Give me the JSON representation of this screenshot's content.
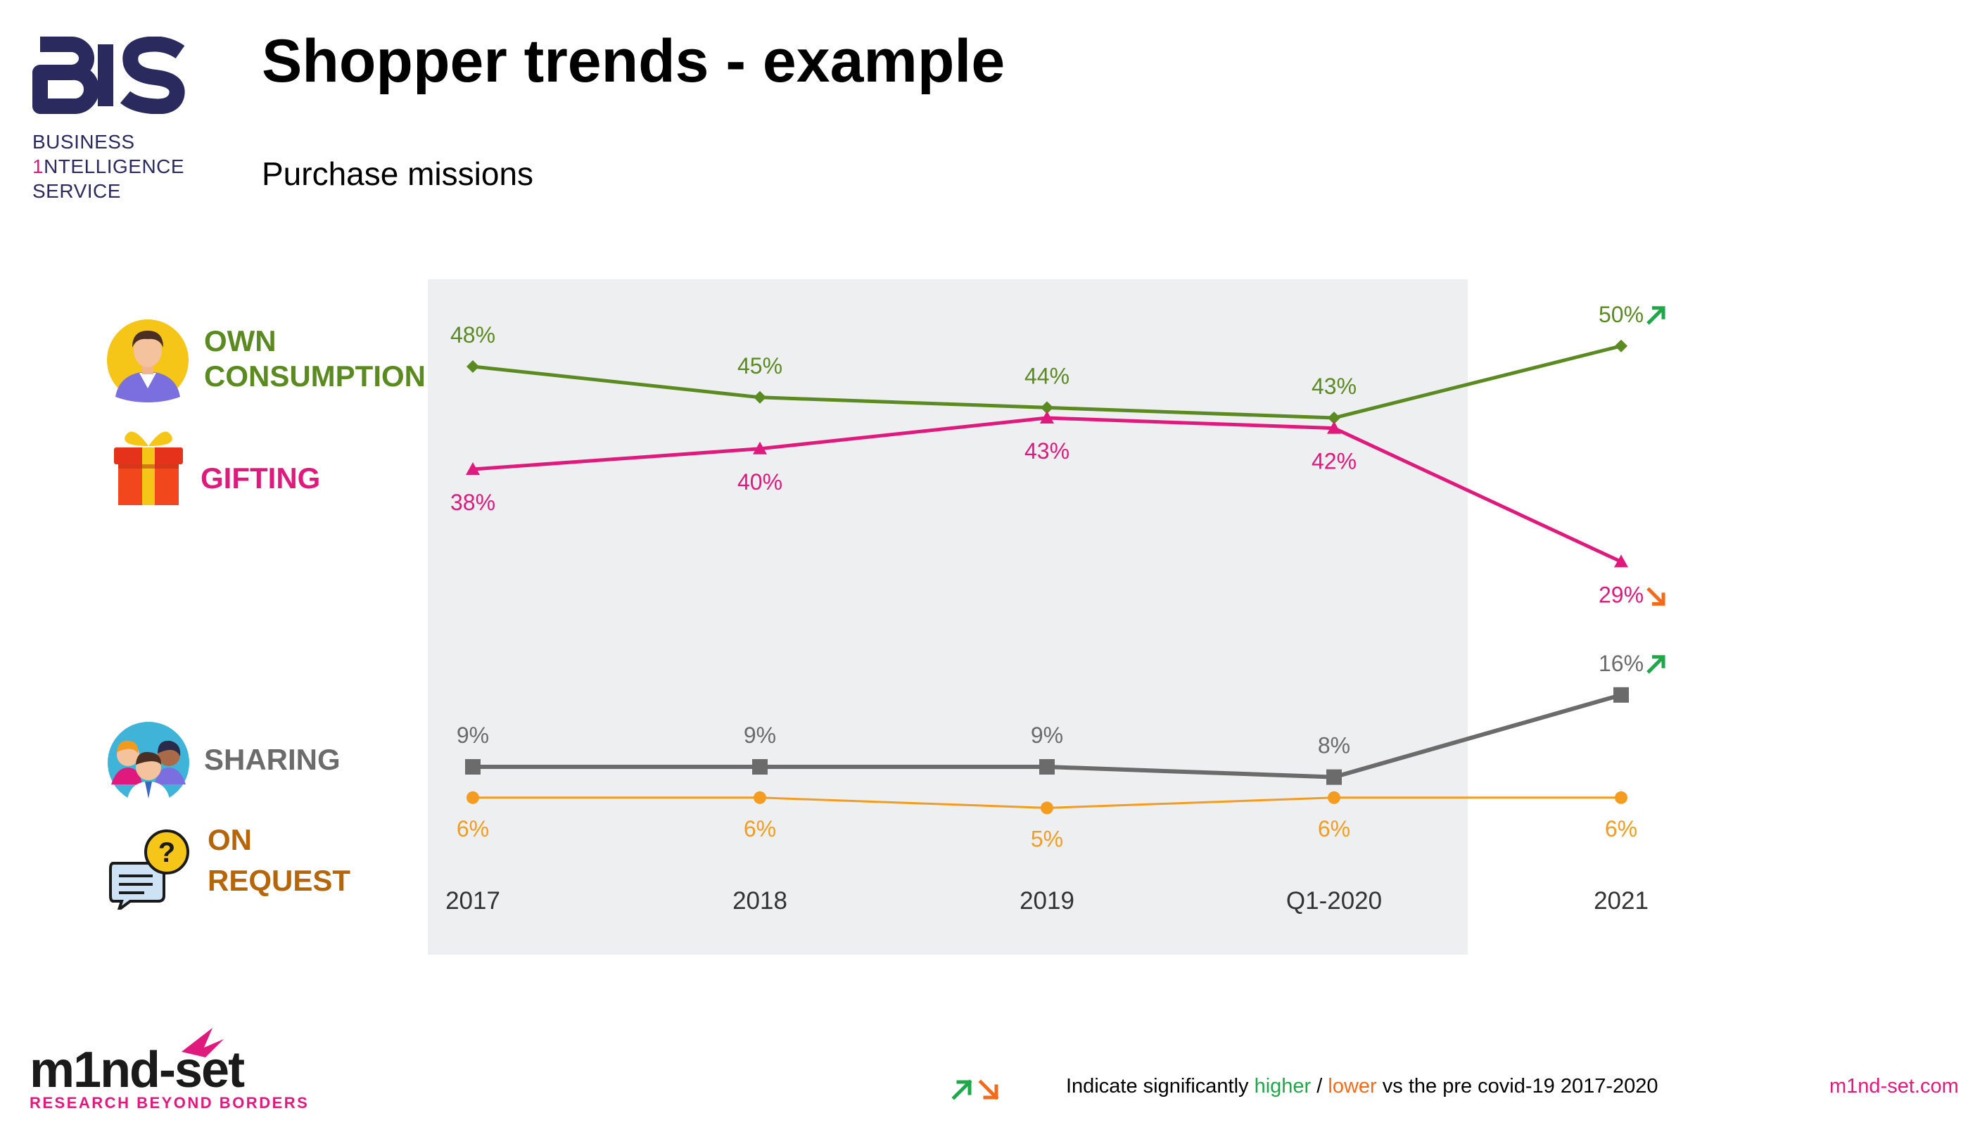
{
  "header": {
    "title": "Shopper trends - example",
    "subtitle": "Purchase missions"
  },
  "logo": {
    "mark": "BIS",
    "line1": "BUSINESS",
    "line2_accent": "1",
    "line2_rest": "NTELLIGENCE",
    "line3": "SERVICE"
  },
  "legend": [
    {
      "label1": "OWN",
      "label2": "CONSUMPTION",
      "icon": "person-avatar-icon"
    },
    {
      "label1": "GIFTING",
      "icon": "gift-box-icon"
    },
    {
      "label1": "SHARING",
      "icon": "group-people-icon"
    },
    {
      "label1": "ON",
      "label2": "REQUEST",
      "icon": "question-speech-bubble-icon"
    }
  ],
  "chart_data": {
    "type": "line",
    "categories": [
      "2017",
      "2018",
      "2019",
      "Q1-2020",
      "2021"
    ],
    "shaded_period": "2017 to Q1-2020 (pre covid-19)",
    "series": [
      {
        "name": "OWN CONSUMPTION",
        "color": "#5b8a21",
        "marker": "diamond",
        "values": [
          48,
          45,
          44,
          43,
          50
        ],
        "labels": [
          "48%",
          "45%",
          "44%",
          "43%",
          "50%"
        ],
        "significance": [
          null,
          null,
          null,
          null,
          "higher"
        ]
      },
      {
        "name": "GIFTING",
        "color": "#e0197d",
        "marker": "triangle",
        "values": [
          38,
          40,
          43,
          42,
          29
        ],
        "labels": [
          "38%",
          "40%",
          "43%",
          "42%",
          "29%"
        ],
        "significance": [
          null,
          null,
          null,
          null,
          "lower"
        ]
      },
      {
        "name": "SHARING",
        "color": "#6b6b6b",
        "marker": "square",
        "values": [
          9,
          9,
          9,
          8,
          16
        ],
        "labels": [
          "9%",
          "9%",
          "9%",
          "8%",
          "16%"
        ],
        "significance": [
          null,
          null,
          null,
          null,
          "higher"
        ]
      },
      {
        "name": "ON REQUEST",
        "color": "#f39c1f",
        "marker": "circle",
        "values": [
          6,
          6,
          5,
          6,
          6
        ],
        "labels": [
          "6%",
          "6%",
          "5%",
          "6%",
          "6%"
        ],
        "significance": [
          null,
          null,
          null,
          null,
          null
        ]
      }
    ],
    "higher_color": "#1fa84a",
    "lower_color": "#f26a1b"
  },
  "footer": {
    "note_prefix": "Indicate significantly ",
    "note_higher": "higher",
    "note_sep": " / ",
    "note_lower": "lower",
    "note_suffix": " vs the pre covid-19 2017-2020",
    "site": "m1nd-set.com",
    "brand": "m1nd-set",
    "tagline": "RESEARCH BEYOND BORDERS"
  }
}
